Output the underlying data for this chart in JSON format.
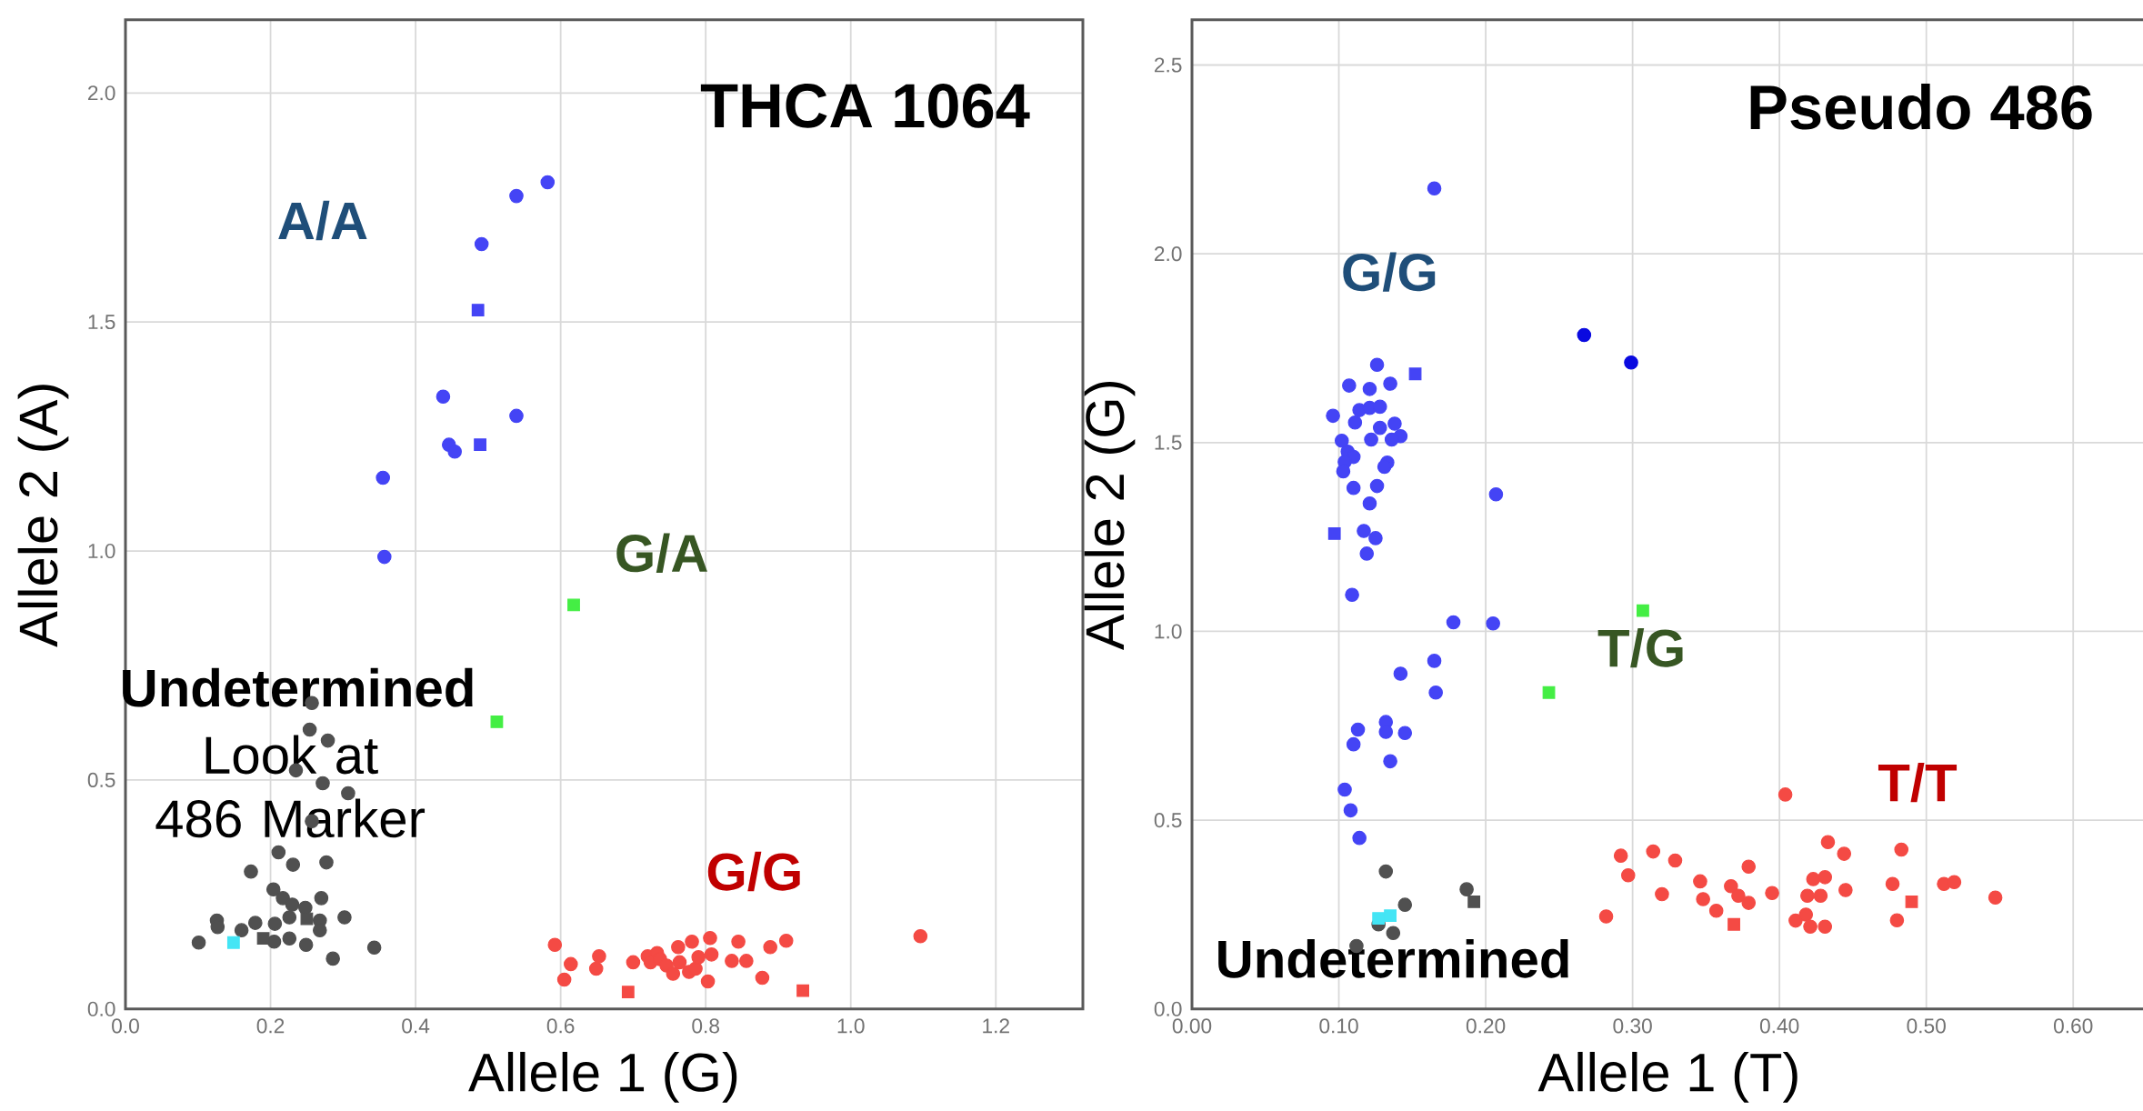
{
  "chart_data": [
    {
      "type": "scatter",
      "title": "THCA 1064",
      "xlabel": "Allele 1 (G)",
      "ylabel": "Allele 2 (A)",
      "xlim": [
        0,
        1.32
      ],
      "ylim": [
        0,
        2.16
      ],
      "xticks": [
        {
          "value": 0,
          "label": "0.0"
        },
        0.2,
        0.4,
        0.6,
        0.8,
        {
          "value": 1,
          "label": "1.0"
        },
        1.2
      ],
      "yticks": [
        {
          "value": 0,
          "label": "0.0"
        },
        0.5,
        {
          "value": 1,
          "label": "1.0"
        },
        1.5,
        {
          "value": 2,
          "label": "2.0"
        }
      ],
      "grid": true,
      "series": [
        {
          "color": "#4444f5",
          "marker": "circle",
          "x": [
            0.582,
            0.539,
            0.491,
            0.438,
            0.446,
            0.454,
            0.539,
            0.355,
            0.357
          ],
          "values": [
            1.805,
            1.775,
            1.67,
            1.337,
            1.232,
            1.217,
            1.295,
            1.16,
            0.987
          ]
        },
        {
          "color": "#4444f5",
          "marker": "square",
          "x": [
            0.486,
            0.489
          ],
          "values": [
            1.526,
            1.232
          ]
        },
        {
          "color": "#44ee44",
          "marker": "square",
          "x": [
            0.618,
            0.512
          ],
          "values": [
            0.882,
            0.627
          ]
        },
        {
          "color": "#f44a44",
          "marker": "circle",
          "x": [
            0.592,
            0.614,
            0.605,
            0.653,
            0.649,
            0.7,
            0.72,
            0.733,
            0.724,
            0.737,
            0.746,
            0.762,
            0.781,
            0.806,
            0.764,
            0.755,
            0.777,
            0.786,
            0.79,
            0.808,
            0.803,
            0.836,
            0.845,
            0.856,
            0.878,
            0.889,
            0.911,
            1.096
          ],
          "values": [
            0.14,
            0.098,
            0.064,
            0.115,
            0.088,
            0.102,
            0.115,
            0.122,
            0.102,
            0.109,
            0.095,
            0.135,
            0.147,
            0.155,
            0.102,
            0.077,
            0.081,
            0.088,
            0.113,
            0.119,
            0.06,
            0.105,
            0.147,
            0.105,
            0.068,
            0.135,
            0.149,
            0.159
          ]
        },
        {
          "color": "#f44a44",
          "marker": "square",
          "x": [
            0.693,
            0.934
          ],
          "values": [
            0.037,
            0.04
          ]
        },
        {
          "color": "#505050",
          "marker": "circle",
          "x": [
            0.257,
            0.254,
            0.279,
            0.235,
            0.272,
            0.307,
            0.257,
            0.211,
            0.173,
            0.231,
            0.277,
            0.204,
            0.217,
            0.23,
            0.248,
            0.27,
            0.126,
            0.127,
            0.16,
            0.179,
            0.206,
            0.226,
            0.268,
            0.268,
            0.302,
            0.101,
            0.205,
            0.226,
            0.249,
            0.286,
            0.343
          ],
          "values": [
            0.668,
            0.61,
            0.586,
            0.521,
            0.493,
            0.471,
            0.41,
            0.342,
            0.3,
            0.315,
            0.32,
            0.261,
            0.242,
            0.228,
            0.221,
            0.242,
            0.193,
            0.179,
            0.172,
            0.188,
            0.186,
            0.2,
            0.193,
            0.172,
            0.2,
            0.145,
            0.147,
            0.154,
            0.14,
            0.11,
            0.134
          ]
        },
        {
          "color": "#505050",
          "marker": "square",
          "x": [
            0.19,
            0.25
          ],
          "values": [
            0.154,
            0.197
          ]
        },
        {
          "color": "#44e5f5",
          "marker": "square",
          "x": [
            0.149
          ],
          "values": [
            0.145
          ]
        }
      ],
      "annotations": [
        "A/A",
        "G/A",
        "G/G",
        "Undetermined",
        "Look at 486 Marker"
      ]
    },
    {
      "type": "scatter",
      "title": "Pseudo 486",
      "xlabel": "Allele 1 (T)",
      "ylabel": "Allele 2 (G)",
      "xlim": [
        0,
        0.65
      ],
      "ylim": [
        0,
        2.62
      ],
      "xticks": [
        {
          "value": 0,
          "label": "0.00"
        },
        {
          "value": 0.1,
          "label": "0.10"
        },
        {
          "value": 0.2,
          "label": "0.20"
        },
        {
          "value": 0.3,
          "label": "0.30"
        },
        {
          "value": 0.4,
          "label": "0.40"
        },
        {
          "value": 0.5,
          "label": "0.50"
        },
        {
          "value": 0.6,
          "label": "0.60"
        }
      ],
      "yticks": [
        {
          "value": 0,
          "label": "0.0"
        },
        0.5,
        {
          "value": 1,
          "label": "1.0"
        },
        1.5,
        {
          "value": 2,
          "label": "2.0"
        },
        2.5
      ],
      "grid": true,
      "series": [
        {
          "color": "#4444f5",
          "marker": "circle",
          "x": [
            0.165,
            0.126,
            0.107,
            0.121,
            0.135,
            0.096,
            0.114,
            0.121,
            0.128,
            0.111,
            0.128,
            0.138,
            0.142,
            0.122,
            0.136,
            0.102,
            0.106,
            0.11,
            0.104,
            0.103,
            0.133,
            0.131,
            0.11,
            0.126,
            0.121,
            0.207,
            0.117,
            0.125,
            0.119,
            0.109,
            0.178,
            0.205,
            0.165,
            0.142,
            0.166,
            0.113,
            0.11,
            0.132,
            0.132,
            0.145,
            0.135,
            0.104,
            0.108,
            0.114
          ],
          "values": [
            2.173,
            1.706,
            1.651,
            1.642,
            1.656,
            1.571,
            1.586,
            1.592,
            1.595,
            1.553,
            1.539,
            1.55,
            1.517,
            1.508,
            1.508,
            1.505,
            1.476,
            1.462,
            1.449,
            1.424,
            1.447,
            1.436,
            1.38,
            1.385,
            1.339,
            1.363,
            1.266,
            1.247,
            1.206,
            1.097,
            1.024,
            1.021,
            0.922,
            0.888,
            0.838,
            0.74,
            0.701,
            0.76,
            0.734,
            0.731,
            0.656,
            0.581,
            0.526,
            0.453
          ]
        },
        {
          "color": "#0a0ae0",
          "marker": "circle",
          "x": [
            0.267,
            0.299
          ],
          "values": [
            1.785,
            1.712
          ]
        },
        {
          "color": "#4444f5",
          "marker": "square",
          "x": [
            0.152,
            0.097
          ],
          "values": [
            1.682,
            1.259
          ]
        },
        {
          "color": "#44ee44",
          "marker": "square",
          "x": [
            0.307,
            0.243
          ],
          "values": [
            1.055,
            0.838
          ]
        },
        {
          "color": "#f44a44",
          "marker": "circle",
          "x": [
            0.404,
            0.292,
            0.314,
            0.329,
            0.297,
            0.32,
            0.282,
            0.346,
            0.348,
            0.357,
            0.367,
            0.372,
            0.379,
            0.379,
            0.395,
            0.411,
            0.418,
            0.421,
            0.431,
            0.419,
            0.423,
            0.431,
            0.428,
            0.433,
            0.444,
            0.445,
            0.477,
            0.483,
            0.48,
            0.512,
            0.519,
            0.547
          ],
          "values": [
            0.568,
            0.406,
            0.417,
            0.393,
            0.354,
            0.304,
            0.245,
            0.338,
            0.291,
            0.26,
            0.325,
            0.3,
            0.377,
            0.281,
            0.307,
            0.234,
            0.25,
            0.218,
            0.218,
            0.3,
            0.344,
            0.349,
            0.3,
            0.442,
            0.411,
            0.315,
            0.331,
            0.422,
            0.235,
            0.331,
            0.336,
            0.295
          ]
        },
        {
          "color": "#f44a44",
          "marker": "square",
          "x": [
            0.369,
            0.49
          ],
          "values": [
            0.224,
            0.284
          ]
        },
        {
          "color": "#505050",
          "marker": "circle",
          "x": [
            0.132,
            0.145,
            0.187,
            0.137,
            0.127,
            0.112
          ],
          "values": [
            0.364,
            0.276,
            0.317,
            0.201,
            0.224,
            0.167
          ]
        },
        {
          "color": "#505050",
          "marker": "square",
          "x": [
            0.192
          ],
          "values": [
            0.284
          ]
        },
        {
          "color": "#44e5f5",
          "marker": "square",
          "x": [
            0.127,
            0.135
          ],
          "values": [
            0.24,
            0.247
          ]
        }
      ],
      "annotations": [
        "G/G",
        "T/G",
        "T/T",
        "Undetermined"
      ]
    }
  ]
}
